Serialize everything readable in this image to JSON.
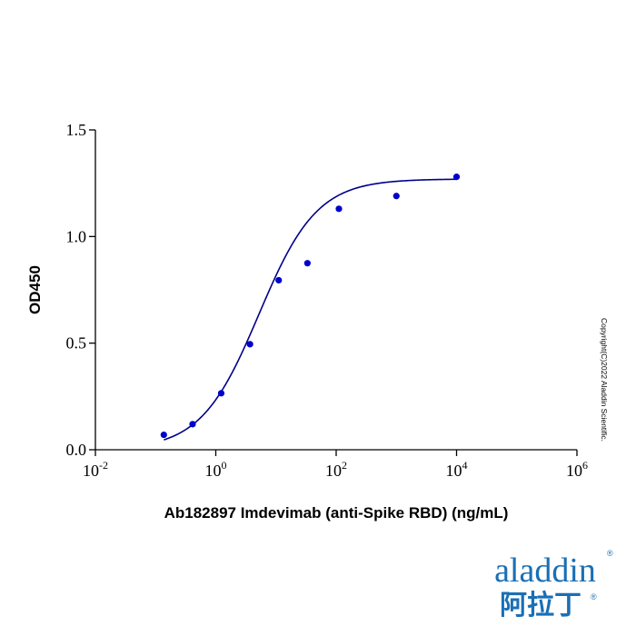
{
  "chart_data": {
    "type": "scatter",
    "title": "",
    "xlabel": "Ab182897 Imdevimab (anti-Spike RBD) (ng/mL)",
    "ylabel": "OD450",
    "x_scale": "log",
    "xlim": [
      0.01,
      1000000
    ],
    "ylim": [
      0,
      1.5
    ],
    "x_ticks": [
      {
        "value": 0.01,
        "base": "10",
        "exp": "-2"
      },
      {
        "value": 1,
        "base": "10",
        "exp": "0"
      },
      {
        "value": 100,
        "base": "10",
        "exp": "2"
      },
      {
        "value": 10000,
        "base": "10",
        "exp": "4"
      },
      {
        "value": 1000000,
        "base": "10",
        "exp": "6"
      }
    ],
    "y_ticks": [
      {
        "value": 0,
        "label": "0.0"
      },
      {
        "value": 0.5,
        "label": "0.5"
      },
      {
        "value": 1.0,
        "label": "1.0"
      },
      {
        "value": 1.5,
        "label": "1.5"
      }
    ],
    "series": [
      {
        "points": [
          {
            "x": 0.137,
            "y": 0.07
          },
          {
            "x": 0.412,
            "y": 0.12
          },
          {
            "x": 1.23,
            "y": 0.265
          },
          {
            "x": 3.7,
            "y": 0.495
          },
          {
            "x": 11.1,
            "y": 0.795
          },
          {
            "x": 33.3,
            "y": 0.875
          },
          {
            "x": 111,
            "y": 1.13
          },
          {
            "x": 1000,
            "y": 1.19
          },
          {
            "x": 10000,
            "y": 1.28
          }
        ],
        "fit": {
          "type": "4PL",
          "bottom": 0.0,
          "top": 1.27,
          "ec50": 5.2,
          "hill": 0.9,
          "x_range": [
            0.137,
            10000
          ]
        },
        "color": "#0000cc"
      }
    ],
    "grid": false,
    "legend": "none"
  },
  "watermark": {
    "text": "Copyright(C)2022 Aladdin Scientific."
  },
  "logo": {
    "word": "aladdin",
    "reg": "®",
    "cjk": "阿拉丁",
    "color": "#1a6fb5",
    "accent": "#c9a227"
  }
}
